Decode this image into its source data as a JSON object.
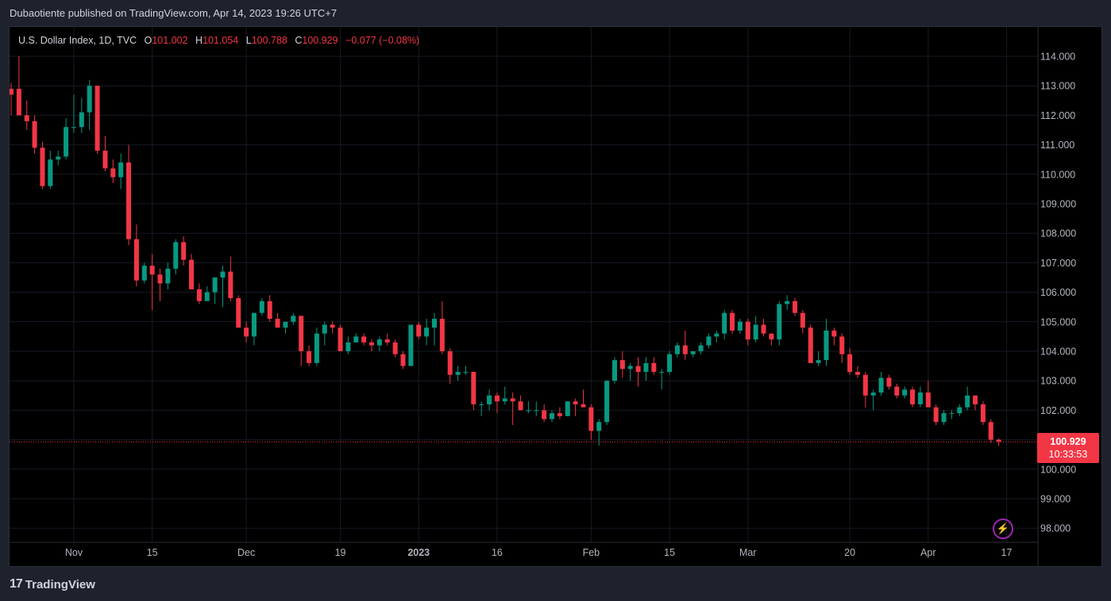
{
  "header": {
    "published_text": "Dubaotiente published on TradingView.com, Apr 14, 2023 19:26 UTC+7"
  },
  "legend": {
    "symbol": "U.S. Dollar Index, 1D, TVC",
    "o_key": "O",
    "o_val": "101.002",
    "h_key": "H",
    "h_val": "101.054",
    "l_key": "L",
    "l_val": "100.788",
    "c_key": "C",
    "c_val": "100.929",
    "change": "−0.077 (−0.08%)"
  },
  "price_label": {
    "price": "100.929",
    "countdown": "10:33:53"
  },
  "brand": {
    "name": "TradingView",
    "logo_text": "17"
  },
  "icons": {
    "lightning": "lightning-icon",
    "logo": "tradingview-logo-icon"
  },
  "colors": {
    "up": "#089981",
    "down": "#f23645",
    "background": "#000000",
    "grid": "#161a25",
    "axis_text": "#b2b5be",
    "last_price_line": "#f23645"
  },
  "chart_data": {
    "type": "candlestick",
    "title": "U.S. Dollar Index, 1D, TVC",
    "ylim": [
      97.5,
      114.4
    ],
    "y_ticks": [
      "114.000",
      "113.000",
      "112.000",
      "111.000",
      "110.000",
      "109.000",
      "108.000",
      "107.000",
      "106.000",
      "105.000",
      "104.000",
      "103.000",
      "102.000",
      "101.000",
      "100.000",
      "99.000",
      "98.000"
    ],
    "x_ticks": [
      {
        "label": "Nov",
        "index": 8,
        "bold": false
      },
      {
        "label": "15",
        "index": 18,
        "bold": false
      },
      {
        "label": "Dec",
        "index": 30,
        "bold": false
      },
      {
        "label": "19",
        "index": 42,
        "bold": false
      },
      {
        "label": "2023",
        "index": 52,
        "bold": true
      },
      {
        "label": "16",
        "index": 62,
        "bold": false
      },
      {
        "label": "Feb",
        "index": 74,
        "bold": false
      },
      {
        "label": "15",
        "index": 84,
        "bold": false
      },
      {
        "label": "Mar",
        "index": 94,
        "bold": false
      },
      {
        "label": "20",
        "index": 107,
        "bold": false
      },
      {
        "label": "Apr",
        "index": 117,
        "bold": false
      },
      {
        "label": "17",
        "index": 127,
        "bold": false
      }
    ],
    "last_price": 100.929,
    "candles": [
      [
        112.9,
        113.1,
        112.0,
        112.7
      ],
      [
        112.9,
        114.0,
        112.0,
        112.0
      ],
      [
        112.0,
        112.5,
        111.5,
        111.8
      ],
      [
        111.8,
        112.0,
        110.7,
        110.9
      ],
      [
        110.9,
        111.1,
        109.5,
        109.6
      ],
      [
        109.6,
        110.8,
        109.5,
        110.5
      ],
      [
        110.5,
        110.8,
        110.3,
        110.6
      ],
      [
        110.6,
        111.9,
        110.5,
        111.6
      ],
      [
        111.6,
        112.7,
        111.4,
        111.6
      ],
      [
        111.6,
        112.6,
        111.4,
        112.1
      ],
      [
        112.1,
        113.2,
        111.5,
        113.0
      ],
      [
        113.0,
        113.0,
        110.7,
        110.8
      ],
      [
        110.8,
        111.3,
        110.1,
        110.2
      ],
      [
        110.2,
        110.5,
        109.7,
        109.9
      ],
      [
        109.9,
        110.7,
        109.5,
        110.4
      ],
      [
        110.4,
        111.0,
        107.6,
        107.8
      ],
      [
        107.8,
        108.3,
        106.2,
        106.4
      ],
      [
        106.4,
        107.0,
        106.3,
        106.9
      ],
      [
        106.9,
        107.3,
        105.4,
        106.6
      ],
      [
        106.6,
        106.8,
        105.7,
        106.3
      ],
      [
        106.3,
        107.0,
        106.1,
        106.8
      ],
      [
        106.8,
        107.8,
        106.6,
        107.7
      ],
      [
        107.7,
        107.9,
        106.9,
        107.1
      ],
      [
        107.1,
        107.3,
        106.1,
        106.1
      ],
      [
        106.1,
        106.3,
        105.6,
        105.7
      ],
      [
        105.7,
        106.2,
        105.8,
        106.0
      ],
      [
        106.0,
        106.5,
        105.6,
        106.5
      ],
      [
        106.5,
        106.9,
        105.5,
        106.7
      ],
      [
        106.7,
        107.2,
        105.7,
        105.8
      ],
      [
        105.8,
        105.9,
        104.8,
        104.8
      ],
      [
        104.8,
        105.0,
        104.3,
        104.5
      ],
      [
        104.5,
        105.3,
        104.2,
        105.3
      ],
      [
        105.3,
        105.8,
        105.2,
        105.7
      ],
      [
        105.7,
        105.9,
        105.0,
        105.1
      ],
      [
        105.1,
        105.3,
        104.8,
        104.8
      ],
      [
        104.8,
        105.0,
        104.6,
        105.0
      ],
      [
        105.0,
        105.3,
        104.9,
        105.2
      ],
      [
        105.2,
        105.2,
        103.5,
        104.0
      ],
      [
        104.0,
        104.2,
        103.5,
        103.6
      ],
      [
        103.6,
        104.8,
        103.5,
        104.6
      ],
      [
        104.6,
        105.0,
        104.2,
        104.9
      ],
      [
        104.9,
        105.0,
        104.6,
        104.8
      ],
      [
        104.8,
        104.9,
        104.0,
        104.0
      ],
      [
        104.0,
        104.5,
        103.9,
        104.3
      ],
      [
        104.3,
        104.6,
        104.3,
        104.5
      ],
      [
        104.5,
        104.6,
        104.2,
        104.3
      ],
      [
        104.3,
        104.4,
        104.0,
        104.2
      ],
      [
        104.2,
        104.5,
        104.0,
        104.4
      ],
      [
        104.4,
        104.6,
        104.2,
        104.3
      ],
      [
        104.3,
        104.4,
        103.8,
        103.9
      ],
      [
        103.9,
        104.0,
        103.4,
        103.5
      ],
      [
        103.5,
        104.9,
        103.5,
        104.9
      ],
      [
        104.9,
        105.0,
        104.4,
        104.5
      ],
      [
        104.5,
        105.1,
        104.2,
        104.8
      ],
      [
        104.8,
        105.3,
        104.2,
        105.1
      ],
      [
        105.1,
        105.7,
        103.9,
        104.0
      ],
      [
        104.0,
        104.1,
        102.9,
        103.2
      ],
      [
        103.2,
        103.5,
        103.0,
        103.3
      ],
      [
        103.3,
        103.5,
        103.2,
        103.3
      ],
      [
        103.3,
        103.3,
        102.0,
        102.2
      ],
      [
        102.2,
        102.3,
        101.8,
        102.2
      ],
      [
        102.2,
        102.7,
        102.0,
        102.5
      ],
      [
        102.5,
        102.6,
        101.9,
        102.3
      ],
      [
        102.3,
        102.8,
        102.2,
        102.4
      ],
      [
        102.4,
        102.6,
        101.5,
        102.3
      ],
      [
        102.3,
        102.5,
        102.0,
        102.0
      ],
      [
        102.0,
        102.3,
        101.9,
        102.0
      ],
      [
        102.0,
        102.3,
        101.8,
        102.0
      ],
      [
        102.0,
        102.2,
        101.6,
        101.7
      ],
      [
        101.7,
        102.0,
        101.6,
        101.9
      ],
      [
        101.9,
        102.1,
        101.7,
        101.8
      ],
      [
        101.8,
        102.3,
        101.8,
        102.3
      ],
      [
        102.3,
        102.4,
        101.8,
        102.2
      ],
      [
        102.2,
        102.7,
        102.1,
        102.1
      ],
      [
        102.1,
        102.2,
        101.0,
        101.3
      ],
      [
        101.3,
        101.7,
        100.8,
        101.6
      ],
      [
        101.6,
        103.0,
        101.5,
        103.0
      ],
      [
        103.0,
        103.8,
        102.9,
        103.7
      ],
      [
        103.7,
        104.0,
        103.1,
        103.4
      ],
      [
        103.4,
        103.6,
        103.0,
        103.5
      ],
      [
        103.5,
        103.8,
        102.8,
        103.3
      ],
      [
        103.3,
        103.8,
        103.0,
        103.6
      ],
      [
        103.6,
        103.8,
        103.2,
        103.3
      ],
      [
        103.3,
        103.4,
        102.7,
        103.3
      ],
      [
        103.3,
        104.0,
        103.2,
        103.9
      ],
      [
        103.9,
        104.3,
        103.8,
        104.2
      ],
      [
        104.2,
        104.7,
        103.7,
        103.9
      ],
      [
        103.9,
        104.0,
        103.8,
        104.0
      ],
      [
        104.0,
        104.3,
        103.9,
        104.2
      ],
      [
        104.2,
        104.6,
        104.1,
        104.5
      ],
      [
        104.5,
        104.7,
        104.3,
        104.6
      ],
      [
        104.6,
        105.4,
        104.4,
        105.3
      ],
      [
        105.3,
        105.4,
        104.6,
        104.7
      ],
      [
        104.7,
        105.1,
        104.6,
        105.0
      ],
      [
        105.0,
        105.1,
        104.2,
        104.4
      ],
      [
        104.4,
        105.2,
        104.3,
        104.9
      ],
      [
        104.9,
        105.1,
        104.5,
        104.6
      ],
      [
        104.6,
        104.6,
        104.2,
        104.4
      ],
      [
        104.4,
        105.7,
        104.2,
        105.6
      ],
      [
        105.6,
        105.9,
        105.4,
        105.7
      ],
      [
        105.7,
        105.8,
        105.2,
        105.3
      ],
      [
        105.3,
        105.4,
        104.6,
        104.8
      ],
      [
        104.8,
        104.9,
        103.6,
        103.6
      ],
      [
        103.6,
        104.0,
        103.5,
        103.7
      ],
      [
        103.7,
        105.1,
        103.5,
        104.7
      ],
      [
        104.7,
        104.8,
        104.2,
        104.5
      ],
      [
        104.5,
        104.6,
        103.6,
        103.9
      ],
      [
        103.9,
        104.1,
        103.2,
        103.3
      ],
      [
        103.3,
        103.5,
        103.1,
        103.2
      ],
      [
        103.2,
        103.3,
        102.1,
        102.5
      ],
      [
        102.5,
        102.7,
        102.0,
        102.6
      ],
      [
        102.6,
        103.3,
        102.5,
        103.1
      ],
      [
        103.1,
        103.2,
        102.7,
        102.8
      ],
      [
        102.8,
        102.9,
        102.4,
        102.5
      ],
      [
        102.5,
        102.8,
        102.4,
        102.7
      ],
      [
        102.7,
        102.8,
        102.1,
        102.2
      ],
      [
        102.2,
        102.8,
        102.1,
        102.6
      ],
      [
        102.6,
        103.0,
        102.1,
        102.1
      ],
      [
        102.1,
        102.2,
        101.5,
        101.6
      ],
      [
        101.6,
        102.0,
        101.5,
        101.9
      ],
      [
        101.9,
        102.0,
        101.7,
        101.9
      ],
      [
        101.9,
        102.2,
        101.8,
        102.1
      ],
      [
        102.1,
        102.8,
        102.0,
        102.5
      ],
      [
        102.5,
        102.5,
        102.0,
        102.2
      ],
      [
        102.2,
        102.3,
        101.5,
        101.6
      ],
      [
        101.6,
        101.7,
        100.9,
        101.0
      ],
      [
        101.0,
        101.05,
        100.79,
        100.93
      ]
    ]
  }
}
